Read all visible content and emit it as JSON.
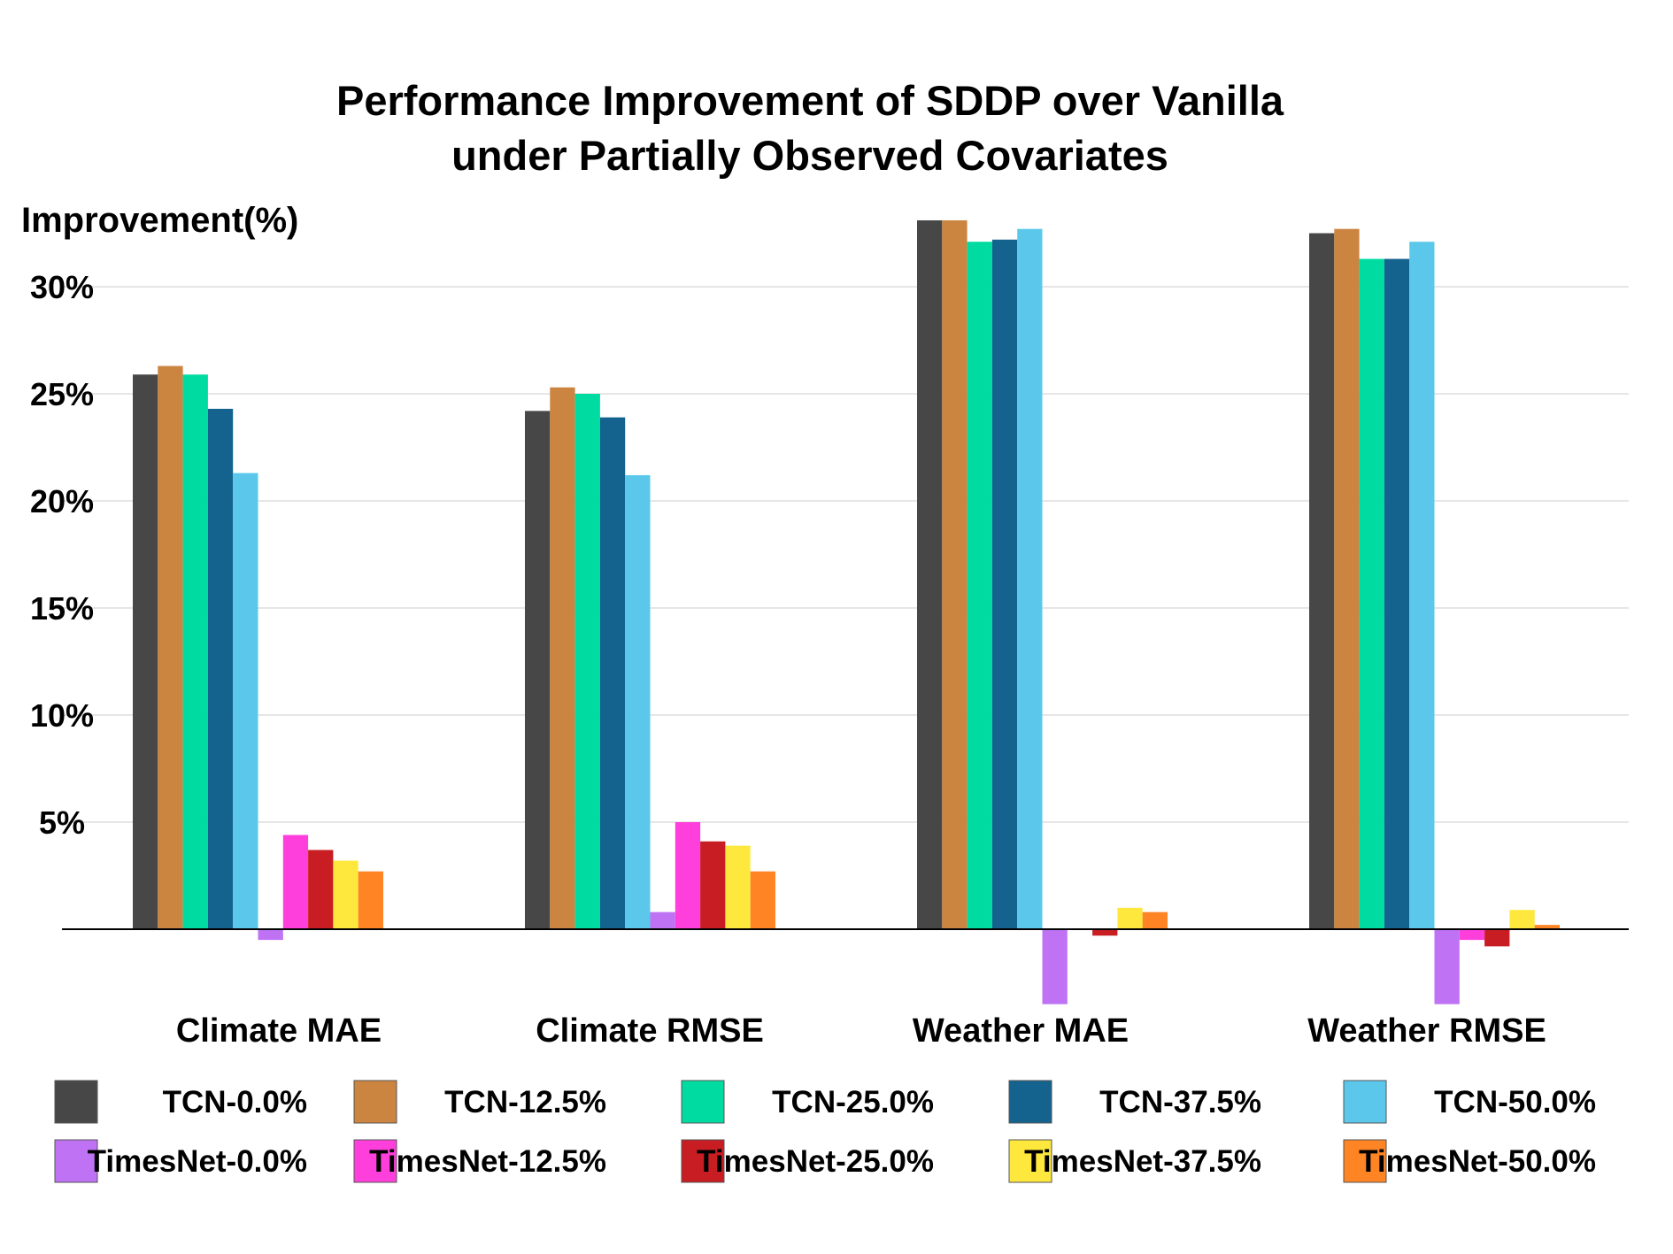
{
  "chart_data": {
    "type": "bar",
    "title": [
      "Performance Improvement of SDDP over Vanilla",
      "under Partially Observed Covariates"
    ],
    "ylabel": "Improvement(%)",
    "xlabel": "",
    "ylim": [
      -3.5,
      33
    ],
    "yticks": [
      5,
      10,
      15,
      20,
      25,
      30
    ],
    "ytick_labels": [
      "5%",
      "10%",
      "15%",
      "20%",
      "25%",
      "30%"
    ],
    "grid": "horizontal",
    "legend_position": "bottom",
    "categories": [
      "Climate MAE",
      "Climate RMSE",
      "Weather MAE",
      "Weather RMSE"
    ],
    "series": [
      {
        "name": "TCN-0.0%",
        "color": "#474747",
        "values": [
          25.9,
          24.2,
          33.1,
          32.5
        ]
      },
      {
        "name": "TCN-12.5%",
        "color": "#CC8540",
        "values": [
          26.3,
          25.3,
          33.1,
          32.7
        ]
      },
      {
        "name": "TCN-25.0%",
        "color": "#00DBA1",
        "values": [
          25.9,
          25.0,
          32.1,
          31.3
        ]
      },
      {
        "name": "TCN-37.5%",
        "color": "#14628E",
        "values": [
          24.3,
          23.9,
          32.2,
          31.3
        ]
      },
      {
        "name": "TCN-50.0%",
        "color": "#5BC8EB",
        "values": [
          21.3,
          21.2,
          32.7,
          32.1
        ]
      },
      {
        "name": "TimesNet-0.0%",
        "color": "#BF73F4",
        "values": [
          -0.5,
          0.8,
          -3.5,
          -3.5
        ]
      },
      {
        "name": "TimesNet-12.5%",
        "color": "#FF3FDC",
        "values": [
          4.4,
          5.0,
          0.0,
          -0.5
        ]
      },
      {
        "name": "TimesNet-25.0%",
        "color": "#C81D22",
        "values": [
          3.7,
          4.1,
          -0.3,
          -0.8
        ]
      },
      {
        "name": "TimesNet-37.5%",
        "color": "#FFE83D",
        "values": [
          3.2,
          3.9,
          1.0,
          0.9
        ]
      },
      {
        "name": "TimesNet-50.0%",
        "color": "#FF8424",
        "values": [
          2.7,
          2.7,
          0.8,
          0.2
        ]
      }
    ]
  }
}
